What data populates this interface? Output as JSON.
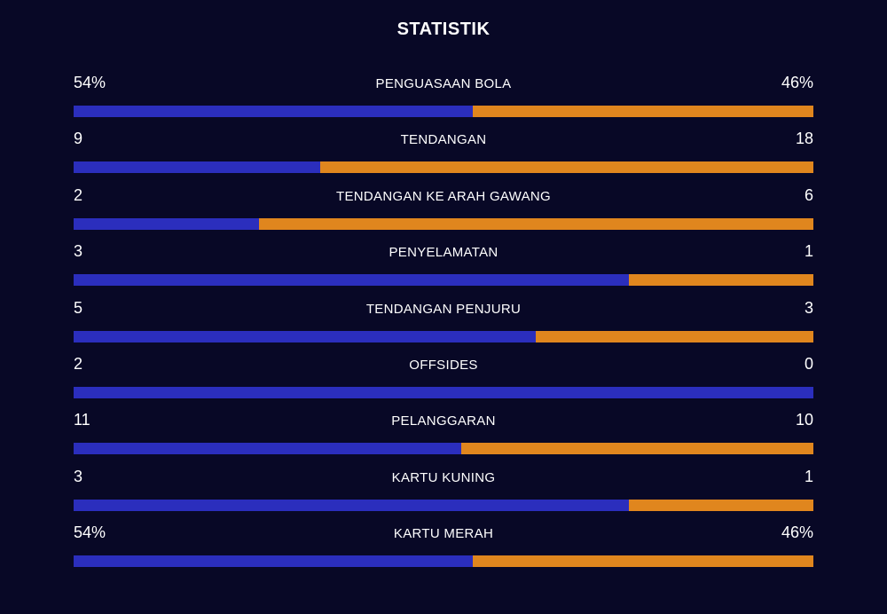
{
  "title": "STATISTIK",
  "colors": {
    "background": "#080826",
    "home": "#2b2ebd",
    "away": "#e0861e"
  },
  "stats": [
    {
      "name": "PENGUASAAN BOLA",
      "left": "54%",
      "right": "46%",
      "home_share": 0.54
    },
    {
      "name": "TENDANGAN",
      "left": "9",
      "right": "18",
      "home_share": 0.333
    },
    {
      "name": "TENDANGAN KE ARAH GAWANG",
      "left": "2",
      "right": "6",
      "home_share": 0.25
    },
    {
      "name": "PENYELAMATAN",
      "left": "3",
      "right": "1",
      "home_share": 0.75
    },
    {
      "name": "TENDANGAN PENJURU",
      "left": "5",
      "right": "3",
      "home_share": 0.625
    },
    {
      "name": "OFFSIDES",
      "left": "2",
      "right": "0",
      "home_share": 1.0
    },
    {
      "name": "PELANGGARAN",
      "left": "11",
      "right": "10",
      "home_share": 0.524
    },
    {
      "name": "KARTU KUNING",
      "left": "3",
      "right": "1",
      "home_share": 0.75
    },
    {
      "name": "KARTU MERAH",
      "left": "54%",
      "right": "46%",
      "home_share": 0.54
    }
  ]
}
